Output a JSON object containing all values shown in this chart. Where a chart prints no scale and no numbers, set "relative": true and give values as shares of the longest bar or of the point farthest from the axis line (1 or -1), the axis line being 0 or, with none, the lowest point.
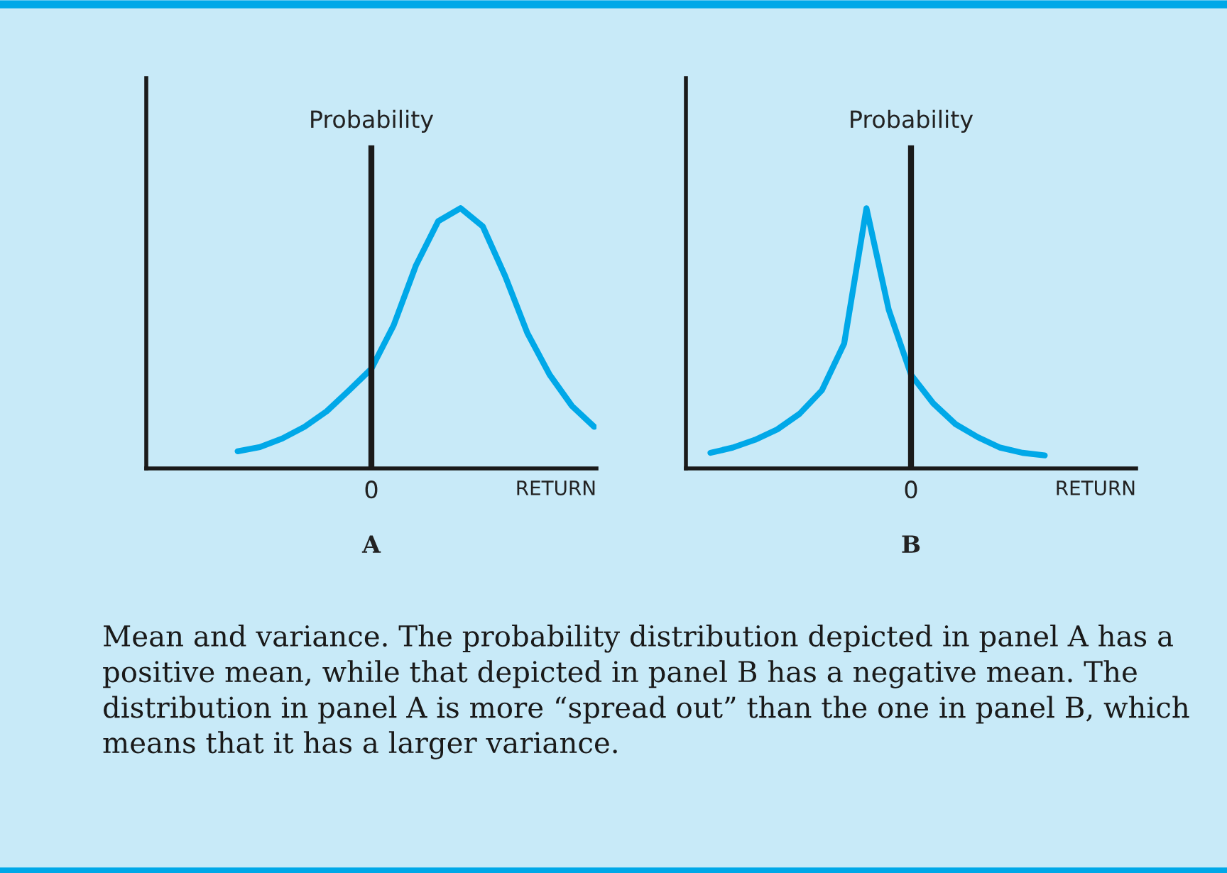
{
  "chart_data": [
    {
      "type": "line",
      "relative": true,
      "title": "A",
      "xlabel": "RETURN",
      "legend": false,
      "grid": false,
      "categories": [
        null,
        null,
        null,
        null,
        null,
        null,
        null,
        null,
        null,
        null,
        null,
        null,
        null,
        null,
        null,
        null,
        null,
        null,
        null,
        null,
        null
      ],
      "series": [
        {
          "color": "#00a8e8",
          "values": [
            null,
            null,
            null,
            null,
            0.066,
            0.082,
            0.115,
            0.16,
            0.22,
            0.3,
            0.383,
            0.55,
            0.78,
            0.95,
            1.0,
            0.93,
            0.74,
            0.52,
            0.36,
            0.24,
            0.16
          ]
        }
      ],
      "annotations": [
        "Probability",
        "0",
        "Mean and variance. The probability distribution depicted in panel A has a positive mean, while that depicted in panel B has a negative mean. The distribution in panel A is more “spread out” than the one in panel B, which means that it has a larger variance."
      ]
    },
    {
      "type": "line",
      "relative": true,
      "title": "B",
      "xlabel": "RETURN",
      "legend": false,
      "grid": false,
      "categories": [
        null,
        null,
        null,
        null,
        null,
        null,
        null,
        null,
        null,
        null,
        null,
        null,
        null,
        null,
        null,
        null,
        null,
        null,
        null,
        null,
        null
      ],
      "series": [
        {
          "color": "#00a8e8",
          "values": [
            null,
            0.06,
            0.08,
            0.11,
            0.15,
            0.21,
            0.3,
            0.48,
            1.0,
            0.61,
            0.36,
            0.25,
            0.17,
            0.12,
            0.08,
            0.06,
            0.05,
            null,
            null,
            null,
            null
          ]
        }
      ],
      "annotations": [
        "Probability",
        "0"
      ]
    }
  ]
}
